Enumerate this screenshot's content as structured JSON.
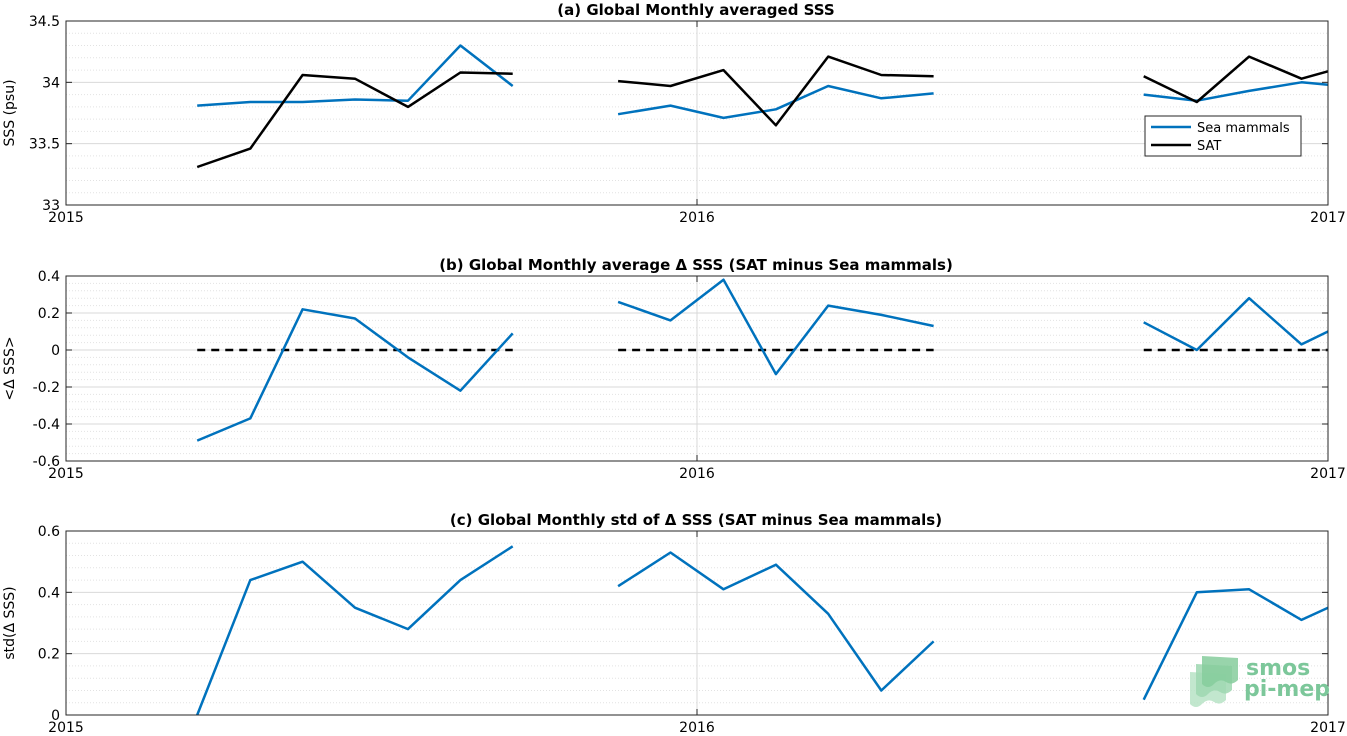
{
  "colors": {
    "sea_mammals": "#0072bd",
    "sat": "#000000",
    "reference": "#000000",
    "logo": "#7cc79a"
  },
  "logo": {
    "line1": "smos",
    "line2": "pi-mep"
  },
  "chart_data": [
    {
      "type": "line",
      "title": "(a) Global Monthly averaged SSS",
      "ylabel": "SSS (psu)",
      "xlim": [
        2015.0,
        2017.0
      ],
      "ylim": [
        33,
        34.5
      ],
      "xticks": [
        "2015",
        "2016",
        "2017"
      ],
      "yticks": [
        "33",
        "33.5",
        "34",
        "34.5"
      ],
      "grid": true,
      "legend_position": "right",
      "series": [
        {
          "name": "Sea mammals",
          "color": "#0072bd",
          "segments": [
            [
              [
                2015.208,
                33.81
              ],
              [
                2015.292,
                33.84
              ],
              [
                2015.375,
                33.84
              ],
              [
                2015.458,
                33.86
              ],
              [
                2015.542,
                33.85
              ],
              [
                2015.625,
                34.3
              ],
              [
                2015.708,
                33.97
              ]
            ],
            [
              [
                2015.875,
                33.74
              ],
              [
                2015.958,
                33.81
              ],
              [
                2016.042,
                33.71
              ],
              [
                2016.125,
                33.78
              ],
              [
                2016.208,
                33.97
              ],
              [
                2016.292,
                33.87
              ],
              [
                2016.375,
                33.91
              ]
            ],
            [
              [
                2016.708,
                33.9
              ],
              [
                2016.792,
                33.85
              ],
              [
                2016.875,
                33.93
              ],
              [
                2016.958,
                34.0
              ],
              [
                2017.0,
                33.98
              ]
            ]
          ]
        },
        {
          "name": "SAT",
          "color": "#000000",
          "segments": [
            [
              [
                2015.208,
                33.31
              ],
              [
                2015.292,
                33.46
              ],
              [
                2015.375,
                34.06
              ],
              [
                2015.458,
                34.03
              ],
              [
                2015.542,
                33.8
              ],
              [
                2015.625,
                34.08
              ],
              [
                2015.708,
                34.07
              ]
            ],
            [
              [
                2015.875,
                34.01
              ],
              [
                2015.958,
                33.97
              ],
              [
                2016.042,
                34.1
              ],
              [
                2016.125,
                33.65
              ],
              [
                2016.208,
                34.21
              ],
              [
                2016.292,
                34.06
              ],
              [
                2016.375,
                34.05
              ]
            ],
            [
              [
                2016.708,
                34.05
              ],
              [
                2016.792,
                33.84
              ],
              [
                2016.875,
                34.21
              ],
              [
                2016.958,
                34.03
              ],
              [
                2017.0,
                34.09
              ]
            ]
          ]
        }
      ]
    },
    {
      "type": "line",
      "title": "(b) Global Monthly average Δ SSS (SAT minus Sea mammals)",
      "ylabel": "<Δ SSS>",
      "xlim": [
        2015.0,
        2017.0
      ],
      "ylim": [
        -0.6,
        0.4
      ],
      "xticks": [
        "2015",
        "2016",
        "2017"
      ],
      "yticks": [
        "-0.6",
        "-0.4",
        "-0.2",
        "0",
        "0.2",
        "0.4"
      ],
      "grid": true,
      "series": [
        {
          "color": "#0072bd",
          "segments": [
            [
              [
                2015.208,
                -0.49
              ],
              [
                2015.292,
                -0.37
              ],
              [
                2015.375,
                0.22
              ],
              [
                2015.458,
                0.17
              ],
              [
                2015.542,
                -0.04
              ],
              [
                2015.625,
                -0.22
              ],
              [
                2015.708,
                0.09
              ]
            ],
            [
              [
                2015.875,
                0.26
              ],
              [
                2015.958,
                0.16
              ],
              [
                2016.042,
                0.38
              ],
              [
                2016.125,
                -0.13
              ],
              [
                2016.208,
                0.24
              ],
              [
                2016.292,
                0.19
              ],
              [
                2016.375,
                0.13
              ]
            ],
            [
              [
                2016.708,
                0.15
              ],
              [
                2016.792,
                0.0
              ],
              [
                2016.875,
                0.28
              ],
              [
                2016.958,
                0.03
              ],
              [
                2017.0,
                0.1
              ]
            ]
          ]
        }
      ],
      "reference_line": {
        "value": 0,
        "color": "#000000",
        "style": "dashed",
        "ranges": [
          [
            2015.208,
            2015.708
          ],
          [
            2015.875,
            2016.375
          ],
          [
            2016.708,
            2017.0
          ]
        ]
      }
    },
    {
      "type": "line",
      "title": "(c) Global Monthly std of Δ SSS (SAT minus Sea mammals)",
      "ylabel": "std(Δ SSS)",
      "xlim": [
        2015.0,
        2017.0
      ],
      "ylim": [
        0,
        0.6
      ],
      "xticks": [
        "2015",
        "2016",
        "2017"
      ],
      "yticks": [
        "0",
        "0.2",
        "0.4",
        "0.6"
      ],
      "grid": true,
      "series": [
        {
          "color": "#0072bd",
          "segments": [
            [
              [
                2015.208,
                0.0
              ],
              [
                2015.292,
                0.44
              ],
              [
                2015.375,
                0.5
              ],
              [
                2015.458,
                0.35
              ],
              [
                2015.542,
                0.28
              ],
              [
                2015.625,
                0.44
              ],
              [
                2015.708,
                0.55
              ]
            ],
            [
              [
                2015.875,
                0.42
              ],
              [
                2015.958,
                0.53
              ],
              [
                2016.042,
                0.41
              ],
              [
                2016.125,
                0.49
              ],
              [
                2016.208,
                0.33
              ],
              [
                2016.292,
                0.08
              ],
              [
                2016.375,
                0.24
              ]
            ],
            [
              [
                2016.708,
                0.05
              ],
              [
                2016.792,
                0.4
              ],
              [
                2016.875,
                0.41
              ],
              [
                2016.958,
                0.31
              ],
              [
                2017.0,
                0.35
              ]
            ]
          ]
        }
      ]
    }
  ]
}
